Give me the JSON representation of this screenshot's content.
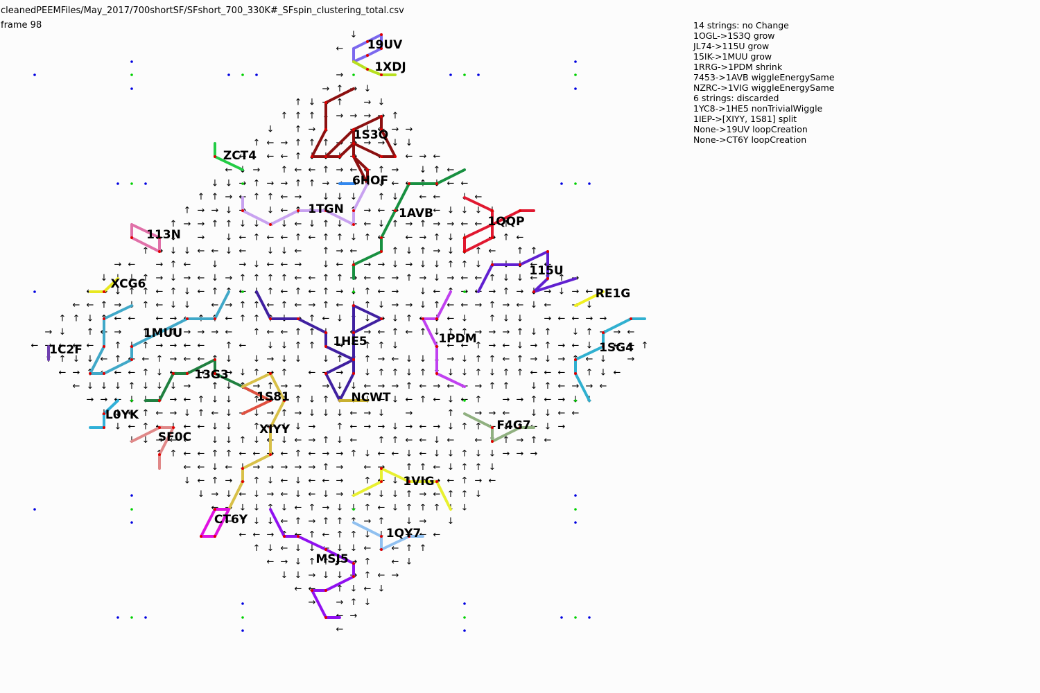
{
  "header": {
    "file_path": "cleanedPEEMFiles/May_2017/700shortSF/SFshort_700_330K#_SFspin_clustering_total.csv",
    "frame": "frame 98"
  },
  "event_log": [
    "14 strings: no Change",
    "1OGL->1S3Q grow",
    "JL74->115U grow",
    "15IK->1MUU grow",
    "1RRG->1PDM shrink",
    "7453->1AVB wiggleEnergySame",
    "NZRC->1VIG wiggleEnergySame",
    "6 strings: discarded",
    "1YC8->1HE5 nonTrivialWiggle",
    "1IEP->[XIYY, 1S81] split",
    "None->19UV loopCreation",
    "None->CT6Y loopCreation"
  ],
  "colors": {
    "vertex_red": "#e00000",
    "vertex_blue": "#0000e0",
    "vertex_green": "#00d000",
    "arrow": "#000000"
  },
  "strings": [
    {
      "name": "19UV",
      "color": "#7b68ee"
    },
    {
      "name": "1XDJ",
      "color": "#b8e020"
    },
    {
      "name": "1S3Q",
      "color": "#8b1010"
    },
    {
      "name": "ZCT4",
      "color": "#22cc44"
    },
    {
      "name": "6HOF",
      "color": "#3388ee"
    },
    {
      "name": "1TGN",
      "color": "#c8a2f0"
    },
    {
      "name": "1AVB",
      "color": "#189040"
    },
    {
      "name": "1QQP",
      "color": "#e01830"
    },
    {
      "name": "113N",
      "color": "#e070a8"
    },
    {
      "name": "115U",
      "color": "#6020d0"
    },
    {
      "name": "XCG6",
      "color": "#e8e820"
    },
    {
      "name": "RE1G",
      "color": "#f0f020"
    },
    {
      "name": "1MUU",
      "color": "#40a8c8"
    },
    {
      "name": "1C2F",
      "color": "#7040b0"
    },
    {
      "name": "1HE5",
      "color": "#4020a0"
    },
    {
      "name": "1PDM",
      "color": "#c040f0"
    },
    {
      "name": "1SG4",
      "color": "#30b0d0"
    },
    {
      "name": "13G3",
      "color": "#208040"
    },
    {
      "name": "1S81",
      "color": "#e05040"
    },
    {
      "name": "NCWT",
      "color": "#c8b030"
    },
    {
      "name": "L0YK",
      "color": "#30b0d8"
    },
    {
      "name": "F4G7",
      "color": "#90b080"
    },
    {
      "name": "SF0C",
      "color": "#e08888"
    },
    {
      "name": "XIYY",
      "color": "#d8c048"
    },
    {
      "name": "1VIG",
      "color": "#e8f030"
    },
    {
      "name": "CT6Y",
      "color": "#e010e0"
    },
    {
      "name": "1QY7",
      "color": "#90c0f0"
    },
    {
      "name": "MSJ5",
      "color": "#9010f0"
    }
  ]
}
